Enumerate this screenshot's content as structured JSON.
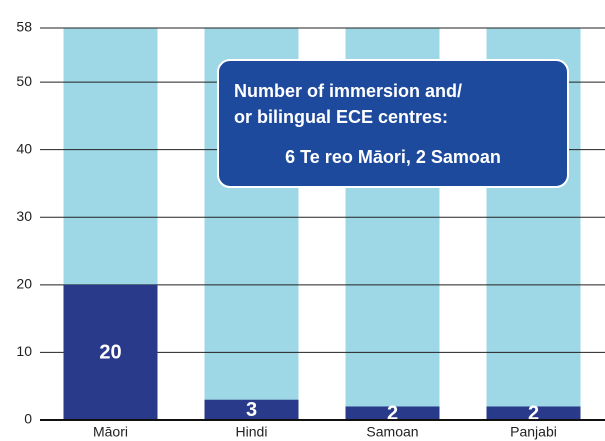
{
  "chart_data": {
    "type": "bar",
    "categories": [
      "Māori",
      "Hindi",
      "Samoan",
      "Panjabi"
    ],
    "values": [
      20,
      3,
      2,
      2
    ],
    "color": "#2a3a8a",
    "background_color": "#9ed8e6",
    "ylim": [
      0,
      58
    ],
    "yticks": [
      0,
      10,
      20,
      30,
      40,
      50,
      58
    ],
    "grid": true,
    "annotation": [
      "Number of immersion and/",
      "or bilingual ECE centres:",
      "6 Te reo Māori, 2 Samoan"
    ]
  }
}
